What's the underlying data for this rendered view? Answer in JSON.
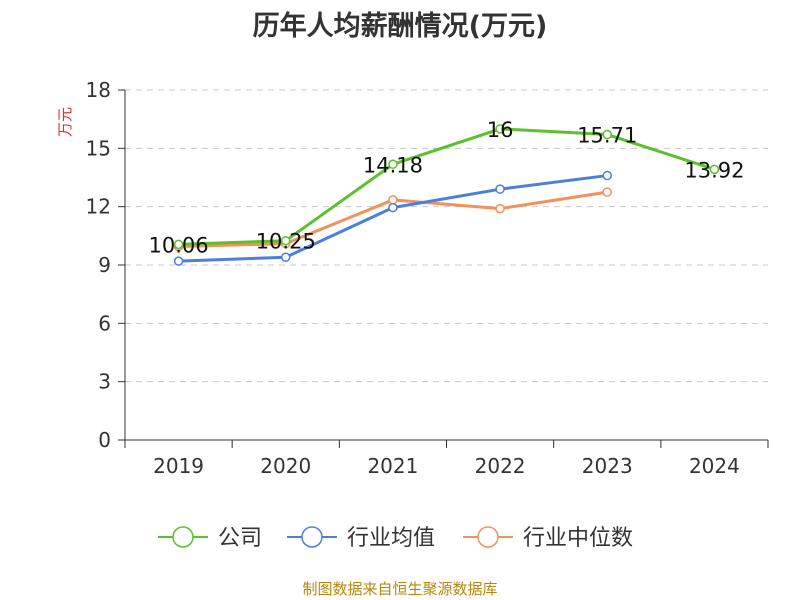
{
  "chart_data": {
    "type": "line",
    "title": "历年人均薪酬情况(万元)",
    "ylabel": "万元",
    "xlabel": "",
    "categories": [
      "2019",
      "2020",
      "2021",
      "2022",
      "2023",
      "2024"
    ],
    "ylim": [
      0,
      18
    ],
    "yticks": [
      0,
      3,
      6,
      9,
      12,
      15,
      18
    ],
    "grid": true,
    "legend_position": "bottom",
    "series": [
      {
        "name": "公司",
        "color": "#5cc02a",
        "values": [
          10.06,
          10.25,
          14.18,
          16,
          15.71,
          13.92
        ],
        "labels": [
          "10.06",
          "10.25",
          "14.18",
          "16",
          "15.71",
          "13.92"
        ]
      },
      {
        "name": "行业均值",
        "color": "#4c7fd9",
        "values": [
          9.2,
          9.4,
          11.95,
          12.9,
          13.6,
          null
        ]
      },
      {
        "name": "行业中位数",
        "color": "#f2915b",
        "values": [
          9.95,
          10.1,
          12.35,
          11.9,
          12.75,
          null
        ]
      }
    ],
    "source": "制图数据来自恒生聚源数据库"
  }
}
